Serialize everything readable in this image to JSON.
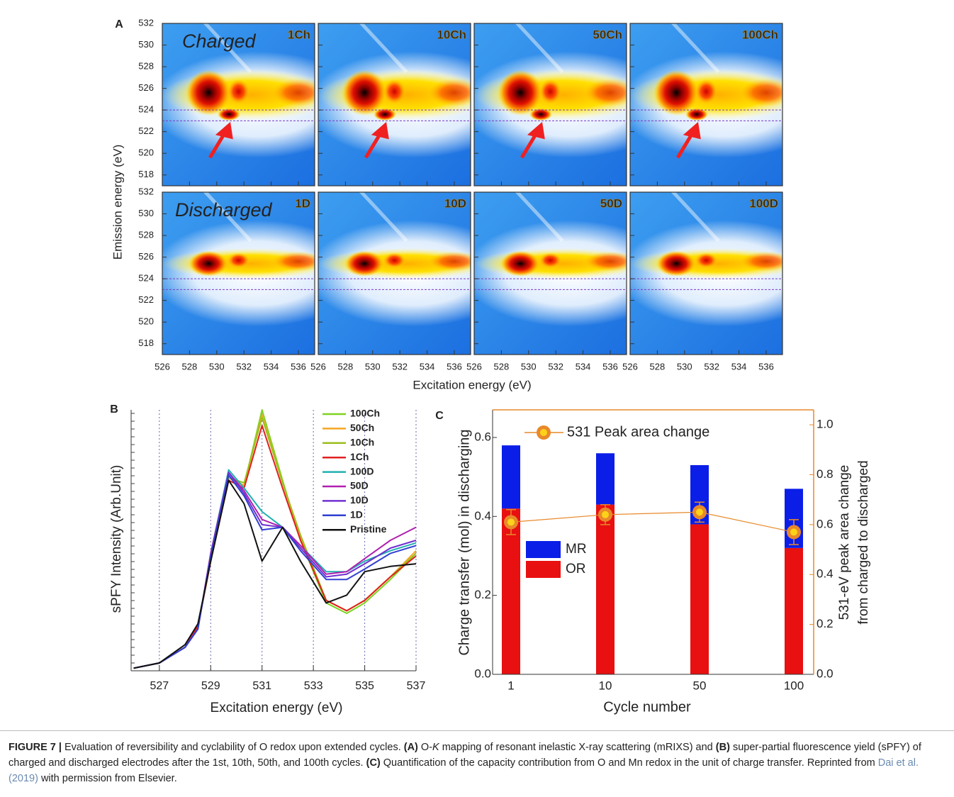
{
  "chart_data": [
    {
      "type": "heatmap",
      "panel_label": "A",
      "xlabel": "Excitation energy (eV)",
      "ylabel": "Emission energy (eV)",
      "xlim": [
        526,
        537.2
      ],
      "ylim": [
        517,
        532
      ],
      "xticks": [
        526,
        528,
        530,
        532,
        534,
        536
      ],
      "yticks": [
        518,
        520,
        522,
        524,
        526,
        528,
        530,
        532
      ],
      "hlines": [
        524,
        523
      ],
      "rows": [
        {
          "title": "Charged",
          "color": "#e0141e",
          "maps": [
            "1Ch",
            "10Ch",
            "50Ch",
            "100Ch"
          ]
        },
        {
          "title": "Discharged",
          "color": "#1a2ad8",
          "maps": [
            "1D",
            "10D",
            "50D",
            "100D"
          ]
        }
      ]
    },
    {
      "type": "line",
      "panel_label": "B",
      "xlabel": "Excitation energy (eV)",
      "ylabel": "sPFY Intensity (Arb.Unit)",
      "xlim": [
        525.9,
        537
      ],
      "ylim": [
        0,
        100
      ],
      "xticks": [
        527,
        529,
        531,
        533,
        535,
        537
      ],
      "grid": true,
      "legend": "upper right",
      "x": [
        526,
        527,
        528,
        528.5,
        529,
        529.7,
        530.3,
        531,
        531.8,
        532.5,
        533.5,
        534.3,
        535,
        536,
        537
      ],
      "series": [
        {
          "name": "100Ch",
          "color": "#7ed321",
          "values": [
            1,
            3,
            9,
            17,
            42,
            74,
            71,
            100,
            73,
            50,
            26,
            22,
            26,
            35,
            45
          ]
        },
        {
          "name": "50Ch",
          "color": "#f5a623",
          "values": [
            1,
            3,
            9,
            17,
            42,
            74,
            71,
            98,
            72,
            51,
            27,
            23,
            27,
            36,
            46
          ]
        },
        {
          "name": "10Ch",
          "color": "#9cbf1e",
          "values": [
            1,
            3,
            9,
            17,
            42,
            74,
            72,
            97,
            72,
            52,
            27,
            23,
            27,
            36,
            45
          ]
        },
        {
          "name": "1Ch",
          "color": "#e02020",
          "values": [
            1,
            3,
            9,
            17,
            42,
            73,
            70,
            94,
            70,
            50,
            27,
            23,
            27,
            36,
            44
          ]
        },
        {
          "name": "100D",
          "color": "#20b0b0",
          "values": [
            1,
            3,
            9,
            16,
            45,
            77,
            70,
            61,
            55,
            48,
            38,
            38,
            42,
            46,
            49
          ]
        },
        {
          "name": "50D",
          "color": "#b020b0",
          "values": [
            1,
            3,
            9,
            16,
            45,
            76,
            69,
            58,
            55,
            48,
            37,
            38,
            43,
            50,
            55
          ]
        },
        {
          "name": "10D",
          "color": "#7030d0",
          "values": [
            1,
            3,
            9,
            16,
            44,
            76,
            68,
            56,
            55,
            47,
            36,
            37,
            41,
            47,
            50
          ]
        },
        {
          "name": "1D",
          "color": "#3040d0",
          "values": [
            1,
            3,
            9,
            16,
            44,
            75,
            67,
            54,
            55,
            46,
            35,
            35,
            39,
            45,
            48
          ]
        },
        {
          "name": "Pristine",
          "color": "#111111",
          "values": [
            1,
            3,
            10,
            18,
            42,
            73,
            64,
            42,
            55,
            42,
            26,
            29,
            38,
            40,
            41
          ]
        }
      ]
    },
    {
      "type": "bar",
      "panel_label": "C",
      "stacked": true,
      "xlabel": "Cycle number",
      "ylabel": "Charge transfer (mol) in discharging",
      "y2label": [
        "531-eV peak area change",
        "from charged to discharged"
      ],
      "categories": [
        "1",
        "10",
        "50",
        "100"
      ],
      "ylim": [
        0,
        0.67
      ],
      "yticks": [
        {
          "value": 0,
          "label": "0.0"
        },
        0.2,
        0.4,
        0.6
      ],
      "y2lim": [
        0,
        1.06
      ],
      "y2ticks": [
        {
          "value": 0,
          "label": "0.0"
        },
        0.2,
        0.4,
        0.6,
        0.8,
        {
          "value": 1,
          "label": "1.0"
        }
      ],
      "series": [
        {
          "name": "MR",
          "color": "#0a1ee8",
          "values": [
            0.16,
            0.13,
            0.15,
            0.15
          ]
        },
        {
          "name": "OR",
          "color": "#e81010",
          "values": [
            0.42,
            0.43,
            0.38,
            0.32
          ]
        },
        {
          "name": "531 Peak area change",
          "type": "line",
          "axis": "y2",
          "color": "#e8892a",
          "values": [
            0.61,
            0.64,
            0.65,
            0.57
          ],
          "errors": [
            0.05,
            0.04,
            0.04,
            0.05
          ]
        }
      ]
    }
  ],
  "caption": {
    "parts": [
      {
        "text": "FIGURE 7 |",
        "style": "bold"
      },
      {
        "text": " Evaluation of reversibility and cyclability of O redox upon extended cycles. "
      },
      {
        "text": "(A)",
        "style": "bold"
      },
      {
        "text": " O-"
      },
      {
        "text": "K",
        "style": "italic"
      },
      {
        "text": " mapping of resonant inelastic X-ray scattering (mRIXS) and "
      },
      {
        "text": "(B)",
        "style": "bold"
      },
      {
        "text": " super-partial fluorescence yield (sPFY) of charged and discharged electrodes after the 1st, 10th, 50th, and 100th cycles. "
      },
      {
        "text": "(C)",
        "style": "bold"
      },
      {
        "text": " Quantification of the capacity contribution from O and Mn redox in the unit of charge transfer. Reprinted from "
      },
      {
        "text": "Dai et al. (2019)",
        "style": "link"
      },
      {
        "text": " with permission from Elsevier."
      }
    ]
  }
}
